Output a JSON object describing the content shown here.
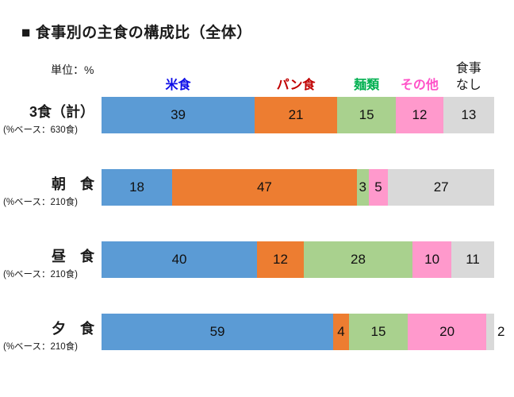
{
  "title": "■ 食事別の主食の構成比（全体）",
  "unit_label": "単位：%",
  "legend": [
    {
      "key": "rice",
      "lines": [
        "米食"
      ],
      "color": "#0D0DE8",
      "bold": true
    },
    {
      "key": "bread",
      "lines": [
        "パン食"
      ],
      "color": "#C00000",
      "bold": true
    },
    {
      "key": "noodles",
      "lines": [
        "麺類"
      ],
      "color": "#00B050",
      "bold": true
    },
    {
      "key": "other",
      "lines": [
        "その他"
      ],
      "color": "#FF52C8",
      "bold": true
    },
    {
      "key": "no-meal",
      "lines": [
        "食事",
        "なし"
      ],
      "color": "#1a1a1a",
      "bold": false
    }
  ],
  "chart_data": {
    "type": "bar",
    "variant": "horizontal-stacked-100",
    "title": "食事別の主食の構成比（全体）",
    "unit": "%",
    "xlim": [
      0,
      100
    ],
    "grid": false,
    "legend_position": "top",
    "categories": [
      "3食（計）",
      "朝　食",
      "昼　食",
      "夕　食"
    ],
    "category_sublabels": [
      "(%ベース：630食)",
      "(%ベース：210食)",
      "(%ベース：210食)",
      "(%ベース：210食)"
    ],
    "series": [
      {
        "key": "rice",
        "name": "米食",
        "color": "#5B9BD5",
        "values": [
          39,
          18,
          40,
          59
        ]
      },
      {
        "key": "bread",
        "name": "パン食",
        "color": "#ED7D31",
        "values": [
          21,
          47,
          12,
          4
        ]
      },
      {
        "key": "noodles",
        "name": "麺類",
        "color": "#A9D18E",
        "values": [
          15,
          3,
          28,
          15
        ]
      },
      {
        "key": "other",
        "name": "その他",
        "color": "#FF99CC",
        "values": [
          12,
          5,
          10,
          20
        ]
      },
      {
        "key": "no-meal",
        "name": "食事なし",
        "color": "#D9D9D9",
        "values": [
          13,
          27,
          11,
          2
        ]
      }
    ]
  }
}
